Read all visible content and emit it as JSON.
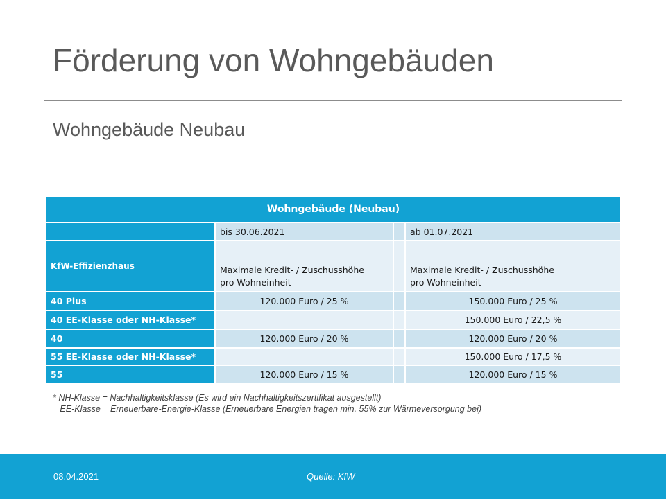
{
  "slide": {
    "title": "Förderung von Wohngebäuden",
    "subtitle": "Wohngebäude Neubau"
  },
  "table": {
    "caption": "Wohngebäude  (Neubau)",
    "col_headers": [
      "bis 30.06.2021",
      "ab 01.07.2021"
    ],
    "row_header_label": "KfW-Effizienzhaus",
    "desc_line1": [
      "Maximale Kredit- / Zuschusshöhe",
      "Maximale Kredit- / Zuschusshöhe"
    ],
    "desc_line2": [
      "pro Wohneinheit",
      "pro Wohneinheit"
    ],
    "rows": [
      {
        "label": "40 Plus",
        "col1": "120.000 Euro  / 25 %",
        "col2": "150.000 Euro / 25 %"
      },
      {
        "label": "40 EE-Klasse  oder NH-Klasse*",
        "col1": "",
        "col2": "150.000 Euro / 22,5 %"
      },
      {
        "label": "40",
        "col1": "120.000 Euro  / 20 %",
        "col2": "120.000 Euro / 20 %"
      },
      {
        "label": "55 EE-Klasse  oder NH-Klasse*",
        "col1": "",
        "col2": "150.000 Euro / 17,5 %"
      },
      {
        "label": "55",
        "col1": "120.000 Euro  / 15 %",
        "col2": "120.000 Euro / 15 %"
      }
    ]
  },
  "footnotes": [
    "* NH-Klasse = Nachhaltigkeitsklasse (Es wird ein Nachhaltigkeitszertifikat ausgestellt)",
    "   EE-Klasse = Erneuerbare-Energie-Klasse (Erneuerbare Energien tragen min. 55% zur Wärmeversorgung bei)"
  ],
  "footer": {
    "date": "08.04.2021",
    "source": "Quelle: KfW"
  },
  "colors": {
    "accent": "#12a2d3",
    "row_light": "#cde3ef",
    "row_pale": "#e6f0f7"
  }
}
